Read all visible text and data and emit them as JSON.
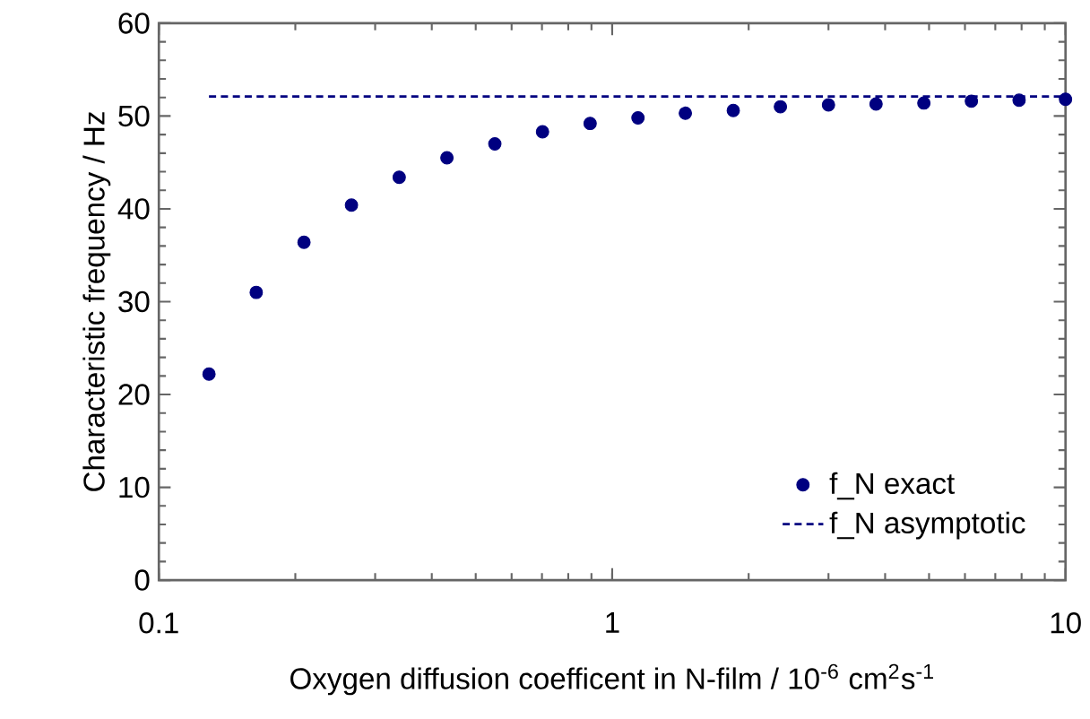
{
  "chart_data": {
    "type": "scatter",
    "xlabel": "Oxygen diffusion coefficent in N-film / 10$^{-6}$ cm$^{2}$s$^{-1}$",
    "ylabel": "Characteristic frequency / Hz",
    "log": "x",
    "xlim": [
      0.1,
      10
    ],
    "ylim": [
      0,
      60
    ],
    "xticks": [
      0.1,
      1,
      10
    ],
    "yticks": [
      0,
      10,
      20,
      30,
      40,
      50,
      60
    ],
    "grid": false,
    "legend": "bottom right",
    "marker": "circle",
    "series": [
      {
        "name": "f_N exact",
        "color": "#000080",
        "x": [
          0.129,
          0.164,
          0.209,
          0.266,
          0.339,
          0.432,
          0.551,
          0.702,
          0.894,
          1.14,
          1.45,
          1.85,
          2.35,
          3.0,
          3.82,
          4.87,
          6.2,
          7.9,
          10.0
        ],
        "values": [
          22.2,
          31.0,
          36.4,
          40.4,
          43.4,
          45.5,
          47.0,
          48.3,
          49.2,
          49.8,
          50.3,
          50.6,
          51.0,
          51.2,
          51.3,
          51.4,
          51.6,
          51.7,
          51.8
        ]
      },
      {
        "name": "f_N asymptotic",
        "type": "line",
        "marker": "none",
        "line_style": "dashed",
        "color": "#000080",
        "x": [
          0.129,
          10.0
        ],
        "values": [
          52.1,
          52.1
        ]
      }
    ]
  }
}
